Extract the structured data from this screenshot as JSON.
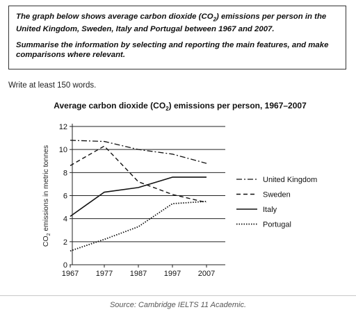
{
  "task": {
    "prompt_line1_a": "The graph below shows average carbon dioxide (CO",
    "prompt_sub": "2",
    "prompt_line1_b": ") emissions per person in the United Kingdom, Sweden, Italy and Portugal between 1967 and 2007.",
    "instruction": "Summarise the information by selecting and reporting the main features, and make comparisons where relevant."
  },
  "write_note": "Write at least 150 words.",
  "source": "Source: Cambridge IELTS 11 Academic.",
  "chart_data": {
    "type": "line",
    "title_a": "Average carbon dioxide (CO",
    "title_sub": "2",
    "title_b": ") emissions per person, 1967–2007",
    "ylabel_a": "CO",
    "ylabel_sub": "2",
    "ylabel_b": " emissions in metric tonnes",
    "xlabel": "",
    "x": [
      1967,
      1977,
      1987,
      1997,
      2007
    ],
    "x_ticks": [
      "1967",
      "1977",
      "1987",
      "1997",
      "2007"
    ],
    "y_ticks": [
      "0",
      "2",
      "4",
      "6",
      "8",
      "10",
      "12"
    ],
    "ylim": [
      0,
      12
    ],
    "grid": true,
    "legend_position": "right",
    "series": [
      {
        "name": "United Kingdom",
        "style": "dashdot",
        "values": [
          10.8,
          10.7,
          10.0,
          9.6,
          8.8
        ]
      },
      {
        "name": "Sweden",
        "style": "dashed",
        "values": [
          8.6,
          10.3,
          7.2,
          6.1,
          5.4
        ]
      },
      {
        "name": "Italy",
        "style": "solid",
        "values": [
          4.2,
          6.3,
          6.7,
          7.6,
          7.6
        ]
      },
      {
        "name": "Portugal",
        "style": "dotted",
        "values": [
          1.2,
          2.2,
          3.3,
          5.3,
          5.5
        ]
      }
    ]
  }
}
